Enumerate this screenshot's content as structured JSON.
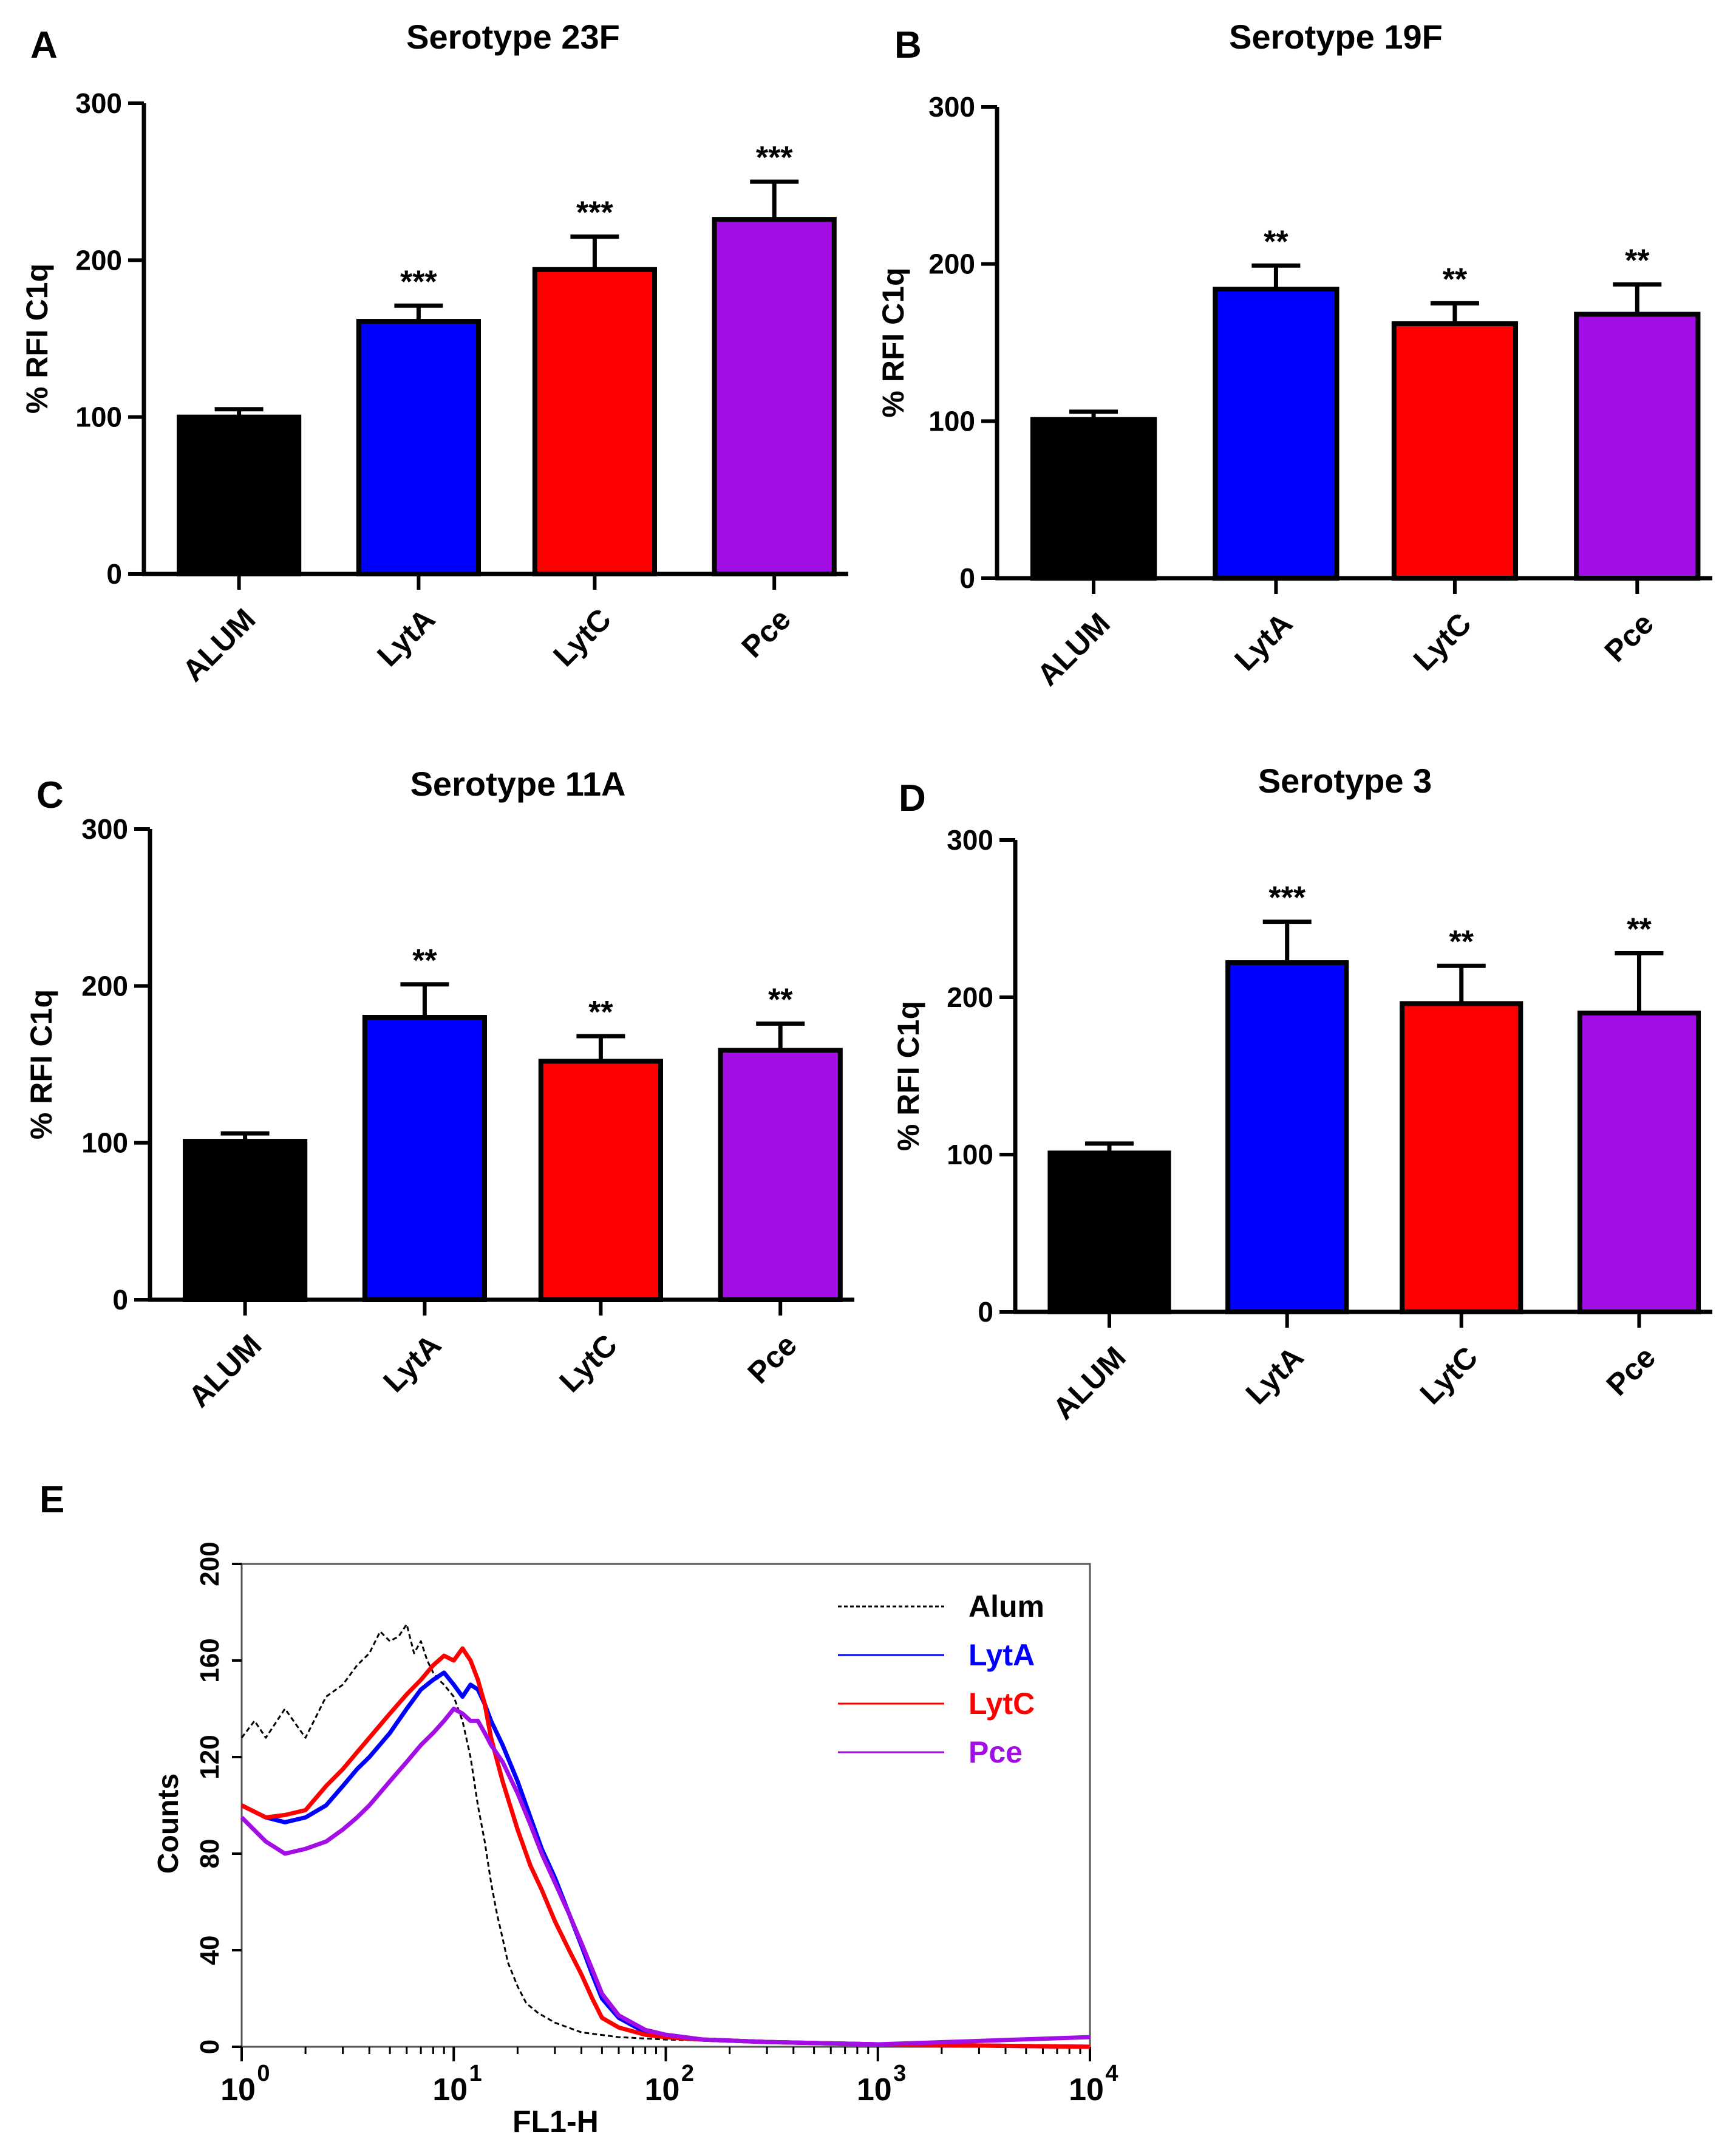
{
  "chart_data": [
    {
      "panel": "A",
      "type": "bar",
      "title": "Serotype 23F",
      "ylabel": "% RFI C1q",
      "xlabel": "",
      "ylim": [
        0,
        300
      ],
      "yticks": [
        0,
        100,
        200,
        300
      ],
      "categories": [
        "ALUM",
        "LytA",
        "LytC",
        "Pce"
      ],
      "values": [
        100,
        161,
        194,
        226
      ],
      "errors": [
        5,
        10,
        21,
        24
      ],
      "colors": [
        "#000000",
        "#0000ff",
        "#ff0000",
        "#a40ee6"
      ],
      "significance": [
        "",
        "***",
        "***",
        "***"
      ]
    },
    {
      "panel": "B",
      "type": "bar",
      "title": "Serotype 19F",
      "ylabel": "% RFI C1q",
      "xlabel": "",
      "ylim": [
        0,
        300
      ],
      "yticks": [
        0,
        100,
        200,
        300
      ],
      "categories": [
        "ALUM",
        "LytA",
        "LytC",
        "Pce"
      ],
      "values": [
        101,
        184,
        162,
        168
      ],
      "errors": [
        5,
        15,
        13,
        19
      ],
      "colors": [
        "#000000",
        "#0000ff",
        "#ff0000",
        "#a40ee6"
      ],
      "significance": [
        "",
        "**",
        "**",
        "**"
      ]
    },
    {
      "panel": "C",
      "type": "bar",
      "title": "Serotype 11A",
      "ylabel": "% RFI C1q",
      "xlabel": "",
      "ylim": [
        0,
        300
      ],
      "yticks": [
        0,
        100,
        200,
        300
      ],
      "categories": [
        "ALUM",
        "LytA",
        "LytC",
        "Pce"
      ],
      "values": [
        101,
        180,
        152,
        159
      ],
      "errors": [
        5,
        21,
        16,
        17
      ],
      "colors": [
        "#000000",
        "#0000ff",
        "#ff0000",
        "#a40ee6"
      ],
      "significance": [
        "",
        "**",
        "**",
        "**"
      ]
    },
    {
      "panel": "D",
      "type": "bar",
      "title": "Serotype 3",
      "ylabel": "% RFI C1q",
      "xlabel": "",
      "ylim": [
        0,
        300
      ],
      "yticks": [
        0,
        100,
        200,
        300
      ],
      "categories": [
        "ALUM",
        "LytA",
        "LytC",
        "Pce"
      ],
      "values": [
        101,
        222,
        196,
        190
      ],
      "errors": [
        6,
        26,
        24,
        38
      ],
      "colors": [
        "#000000",
        "#0000ff",
        "#ff0000",
        "#a40ee6"
      ],
      "significance": [
        "",
        "***",
        "**",
        "**"
      ]
    },
    {
      "panel": "E",
      "type": "line",
      "title": "",
      "xlabel": "FL1-H",
      "ylabel": "Counts",
      "xscale": "log",
      "xlim": [
        1,
        10000
      ],
      "ylim": [
        0,
        200
      ],
      "xtick_labels": [
        "10",
        "10",
        "10",
        "10",
        "10"
      ],
      "xtick_exponents": [
        "0",
        "1",
        "2",
        "3",
        "4"
      ],
      "yticks": [
        0,
        40,
        80,
        120,
        160,
        200
      ],
      "legend_position": "top-right",
      "series": [
        {
          "name": "Alum",
          "color": "#000000",
          "dashed": true,
          "x": [
            1,
            1.15,
            1.3,
            1.6,
            2,
            2.5,
            3,
            3.5,
            4,
            4.5,
            5,
            5.5,
            6,
            6.5,
            7,
            7.5,
            8,
            8.5,
            9,
            10,
            11,
            12,
            13,
            14,
            15,
            16,
            17,
            18,
            20,
            22,
            25,
            30,
            40,
            60,
            100,
            300,
            1000,
            10000
          ],
          "y": [
            128,
            135,
            128,
            140,
            128,
            145,
            150,
            158,
            163,
            172,
            168,
            170,
            175,
            163,
            168,
            160,
            155,
            152,
            150,
            145,
            135,
            120,
            100,
            85,
            68,
            55,
            45,
            35,
            25,
            18,
            14,
            10,
            6,
            4,
            3,
            2,
            1,
            0
          ]
        },
        {
          "name": "LytA",
          "color": "#0000ff",
          "dashed": false,
          "x": [
            1,
            1.3,
            1.6,
            2,
            2.5,
            3,
            3.5,
            4,
            5,
            6,
            7,
            8,
            9,
            10,
            11,
            12,
            13,
            14,
            15,
            17,
            20,
            23,
            26,
            30,
            35,
            40,
            45,
            50,
            60,
            80,
            100,
            150,
            300,
            1000,
            10000
          ],
          "y": [
            100,
            95,
            93,
            95,
            100,
            108,
            115,
            120,
            130,
            140,
            148,
            152,
            155,
            150,
            145,
            150,
            148,
            142,
            135,
            125,
            110,
            95,
            82,
            70,
            55,
            42,
            30,
            20,
            12,
            6,
            4,
            3,
            2,
            1,
            0
          ]
        },
        {
          "name": "LytC",
          "color": "#ff0000",
          "dashed": false,
          "x": [
            1,
            1.3,
            1.6,
            2,
            2.5,
            3,
            3.5,
            4,
            5,
            6,
            7,
            8,
            9,
            10,
            11,
            12,
            13,
            14,
            15,
            17,
            20,
            23,
            26,
            30,
            35,
            40,
            45,
            50,
            60,
            80,
            100,
            150,
            300,
            1000,
            10000
          ],
          "y": [
            100,
            95,
            96,
            98,
            108,
            115,
            122,
            128,
            138,
            146,
            152,
            158,
            162,
            160,
            165,
            160,
            152,
            142,
            128,
            110,
            90,
            75,
            65,
            52,
            40,
            30,
            20,
            12,
            8,
            5,
            4,
            3,
            2,
            1,
            0
          ]
        },
        {
          "name": "Pce",
          "color": "#a40ee6",
          "dashed": false,
          "x": [
            1,
            1.3,
            1.6,
            2,
            2.5,
            3,
            3.5,
            4,
            5,
            6,
            7,
            8,
            9,
            10,
            11,
            12,
            13,
            14,
            15,
            17,
            20,
            23,
            26,
            30,
            35,
            40,
            45,
            50,
            60,
            80,
            100,
            150,
            300,
            1000,
            10000
          ],
          "y": [
            95,
            85,
            80,
            82,
            85,
            90,
            95,
            100,
            110,
            118,
            125,
            130,
            135,
            140,
            138,
            135,
            135,
            130,
            125,
            118,
            105,
            92,
            80,
            68,
            55,
            43,
            32,
            22,
            13,
            7,
            5,
            3,
            2,
            1,
            4
          ]
        }
      ]
    }
  ]
}
